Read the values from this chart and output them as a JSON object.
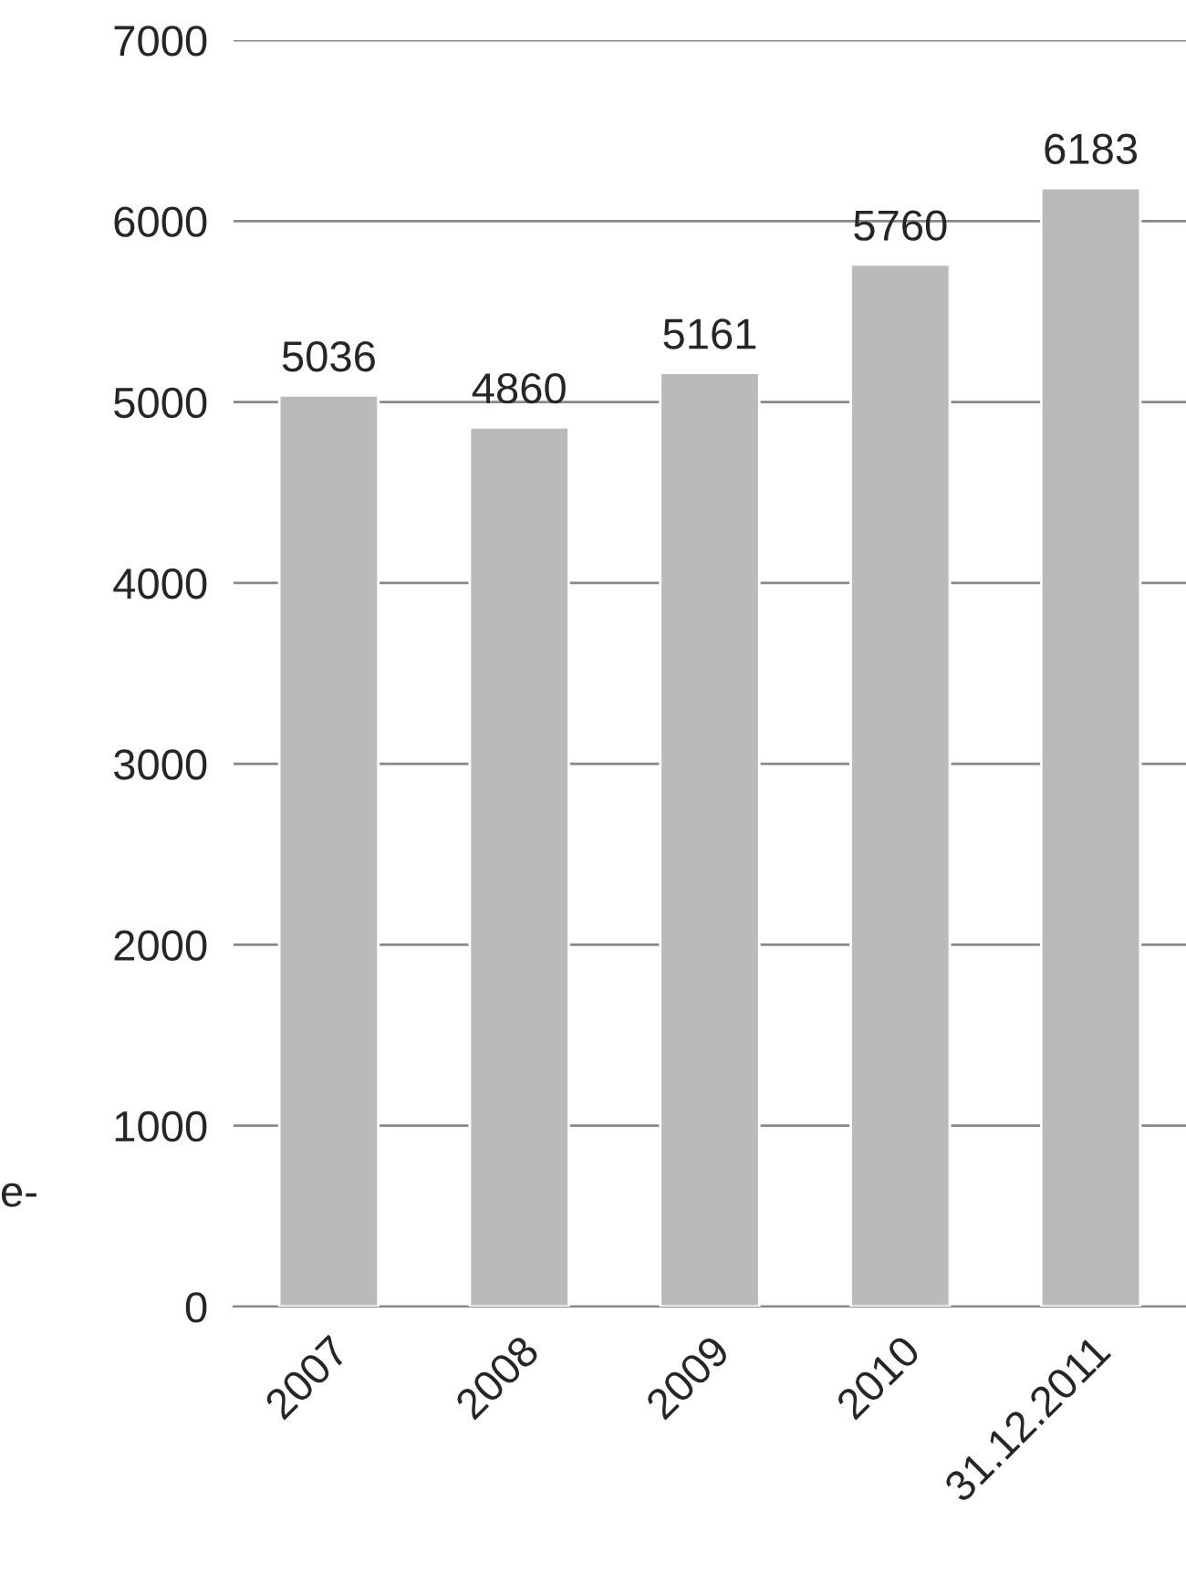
{
  "chart_data": {
    "type": "bar",
    "categories": [
      "2007",
      "2008",
      "2009",
      "2010",
      "31.12.2011"
    ],
    "values": [
      5036,
      4860,
      5161,
      5760,
      6183
    ],
    "color": "#bababa",
    "ylim": [
      0,
      7000
    ],
    "yticks": [
      0,
      1000,
      2000,
      3000,
      4000,
      5000,
      6000,
      7000
    ],
    "grid": "y",
    "data_labels": true,
    "annotations": [
      "e-"
    ]
  }
}
